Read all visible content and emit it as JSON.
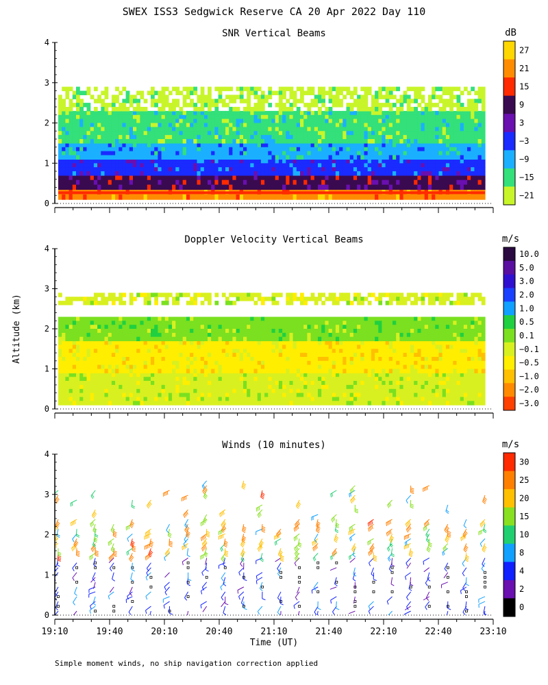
{
  "figure": {
    "title": "SWEX ISS3 Sedgwick Reserve CA  20 Apr 2022 Day 110",
    "ylabel": "Altitude (km)",
    "xlabel": "Time (UT)",
    "footnote": "Simple moment winds, no ship navigation correction applied",
    "xticks": [
      "19:10",
      "19:40",
      "20:10",
      "20:40",
      "21:10",
      "21:40",
      "22:10",
      "22:40",
      "23:10"
    ],
    "yticks": [
      "0",
      "1",
      "2",
      "3",
      "4"
    ]
  },
  "chart_data": [
    {
      "type": "heatmap",
      "title": "SNR Vertical Beams",
      "unit": "dB",
      "ylim": [
        0,
        4
      ],
      "x_range": [
        "19:10",
        "23:10"
      ],
      "colorbar": {
        "labels": [
          "27",
          "21",
          "15",
          "9",
          "3",
          "−3",
          "−9",
          "−15",
          "−21"
        ],
        "colors": [
          "#ffd700",
          "#ff8c00",
          "#ff2a00",
          "#3a0a50",
          "#6a0fb0",
          "#1a2bff",
          "#1ab0ff",
          "#33e07a",
          "#c8f52a"
        ]
      },
      "layers": [
        {
          "alt": [
            0.1,
            0.35
          ],
          "value": 21
        },
        {
          "alt": [
            0.35,
            0.7
          ],
          "value": 9
        },
        {
          "alt": [
            0.7,
            1.1
          ],
          "value": -3
        },
        {
          "alt": [
            1.1,
            1.5
          ],
          "value": -9
        },
        {
          "alt": [
            1.5,
            2.3
          ],
          "value": -15
        },
        {
          "alt": [
            2.3,
            2.9
          ],
          "value": -21
        }
      ]
    },
    {
      "type": "heatmap",
      "title": "Doppler Velocity Vertical Beams",
      "unit": "m/s",
      "ylim": [
        0,
        4
      ],
      "x_range": [
        "19:10",
        "23:10"
      ],
      "colorbar": {
        "labels": [
          "10.0",
          "5.0",
          "3.0",
          "2.0",
          "1.0",
          "0.5",
          "0.1",
          "−0.1",
          "−0.5",
          "−1.0",
          "−2.0",
          "−3.0"
        ],
        "colors": [
          "#2a0a40",
          "#5a0fa0",
          "#3010d0",
          "#1a40ff",
          "#10a0ff",
          "#20d040",
          "#7ae020",
          "#d8f020",
          "#ffee00",
          "#ffc000",
          "#ff8a00",
          "#ff4000"
        ]
      },
      "layers": [
        {
          "alt": [
            0.1,
            0.9
          ],
          "value": -0.1
        },
        {
          "alt": [
            0.9,
            1.7
          ],
          "value": -0.5
        },
        {
          "alt": [
            1.7,
            2.3
          ],
          "value": 0.1
        },
        {
          "alt": [
            2.6,
            2.9
          ],
          "value": -0.1
        }
      ]
    },
    {
      "type": "barbs",
      "title": "Winds (10 minutes)",
      "unit": "m/s",
      "ylim": [
        0,
        4
      ],
      "x_range": [
        "19:10",
        "23:10"
      ],
      "colorbar": {
        "labels": [
          "30",
          "25",
          "20",
          "15",
          "10",
          "8",
          "4",
          "2",
          "0"
        ],
        "colors": [
          "#ff2a00",
          "#ff8000",
          "#ffc000",
          "#88e020",
          "#20d070",
          "#10a0ff",
          "#1020ff",
          "#6a0fb0",
          "#000000"
        ]
      }
    }
  ]
}
